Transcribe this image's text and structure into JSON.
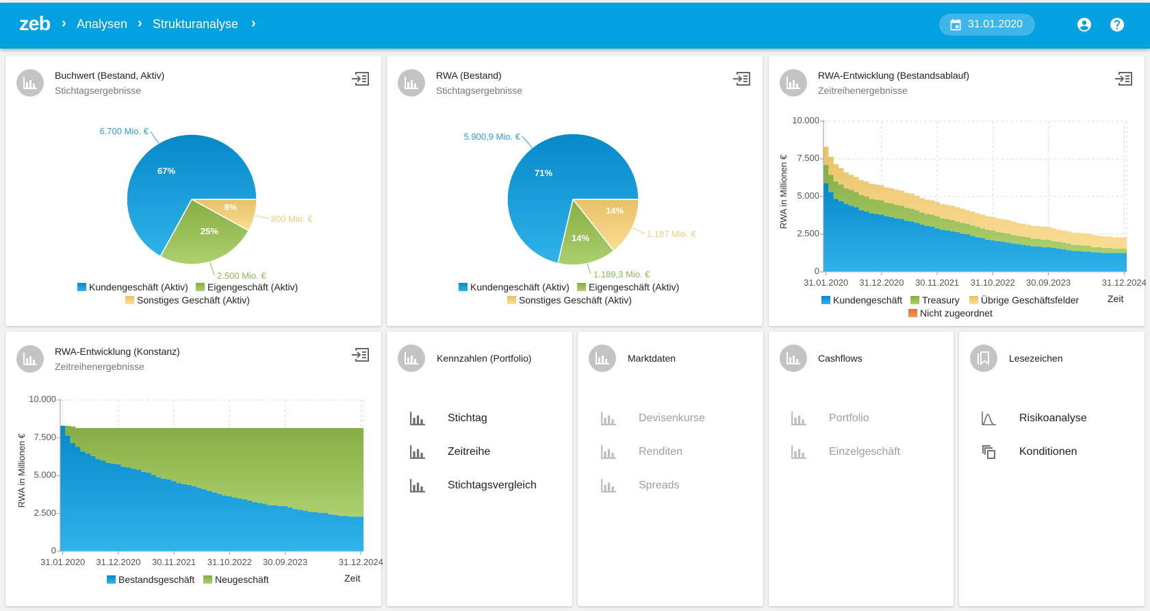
{
  "header": {
    "logo": "zeb",
    "breadcrumb": [
      "Analysen",
      "Strukturanalyse"
    ],
    "date": "31.01.2020",
    "icons": [
      "calendar-icon",
      "account-icon",
      "help-icon"
    ]
  },
  "colors": {
    "brand": "#03a0e2",
    "blue": "#129fdc",
    "green": "#97bf56",
    "yellow": "#f2d081",
    "orange": "#e8823c"
  },
  "cards": {
    "buchwert": {
      "title": "Buchwert (Bestand, Aktiv)",
      "subtitle": "Stichtagsergebnisse"
    },
    "rwa": {
      "title": "RWA (Bestand)",
      "subtitle": "Stichtagsergebnisse"
    },
    "rwa_entw": {
      "title": "RWA-Entwicklung (Bestandsablauf)",
      "subtitle": "Zeitreihenergebnisse"
    },
    "rwa_konst": {
      "title": "RWA-Entwicklung (Konstanz)",
      "subtitle": "Zeitreihenergebnisse"
    },
    "kennzahlen": {
      "title": "Kennzahlen (Portfolio)",
      "items": [
        {
          "label": "Stichtag",
          "icon": "bar-chart-icon",
          "enabled": true
        },
        {
          "label": "Zeitreihe",
          "icon": "bar-chart-icon",
          "enabled": true
        },
        {
          "label": "Stichtagsvergleich",
          "icon": "bar-chart-icon",
          "enabled": true
        }
      ]
    },
    "marktdaten": {
      "title": "Marktdaten",
      "items": [
        {
          "label": "Devisenkurse",
          "icon": "bar-chart-icon",
          "enabled": false
        },
        {
          "label": "Renditen",
          "icon": "bar-chart-icon",
          "enabled": false
        },
        {
          "label": "Spreads",
          "icon": "bar-chart-icon",
          "enabled": false
        }
      ]
    },
    "cashflows": {
      "title": "Cashflows",
      "items": [
        {
          "label": "Portfolio",
          "icon": "bar-chart-icon",
          "enabled": false
        },
        {
          "label": "Einzelgeschäft",
          "icon": "bar-chart-icon",
          "enabled": false
        }
      ]
    },
    "lesezeichen": {
      "title": "Lesezeichen",
      "items": [
        {
          "label": "Risikoanalyse",
          "icon": "bell-curve-icon",
          "enabled": true
        },
        {
          "label": "Konditionen",
          "icon": "copy-icon",
          "enabled": true
        }
      ]
    }
  },
  "chart_data": [
    {
      "type": "pie",
      "categories": [
        "Kundengeschäft (Aktiv)",
        "Eigengeschäft (Aktiv)",
        "Sonstiges Geschäft (Aktiv)"
      ],
      "values": [
        6700,
        2500,
        800
      ],
      "value_labels": [
        "6.700 Mio. €",
        "2.500 Mio. €",
        "800 Mio. €"
      ],
      "percent_labels": [
        "67%",
        "25%",
        "8%"
      ],
      "legend": "bottom"
    },
    {
      "type": "pie",
      "categories": [
        "Kundengeschäft (Aktiv)",
        "Eigengeschäft (Aktiv)",
        "Sonstiges Geschäft (Aktiv)"
      ],
      "values": [
        5900.9,
        1189.3,
        1187
      ],
      "value_labels": [
        "5.900,9 Mio. €",
        "1.189,3 Mio. €",
        "1.187 Mio. €"
      ],
      "percent_labels": [
        "71%",
        "14%",
        "14%"
      ],
      "legend": "bottom"
    },
    {
      "type": "area",
      "stacked": true,
      "ylabel": "RWA in Millionen €",
      "xlabel": "Zeit",
      "x_start": "31.01.2020",
      "x_end": "31.12.2024",
      "x_step": "month",
      "x_ticks": [
        "31.01.2020",
        "31.12.2020",
        "30.11.2021",
        "31.10.2022",
        "30.09.2023",
        "31.12.2024"
      ],
      "y_ticks": [
        "0",
        "2.500",
        "5.000",
        "7.500",
        "10.000"
      ],
      "ylim": [
        0,
        10000
      ],
      "grid": true,
      "legend": "bottom",
      "series": [
        {
          "name": "Kundengeschäft",
          "values": [
            5900,
            5300,
            4850,
            4700,
            4500,
            4400,
            4300,
            4100,
            4000,
            3900,
            3850,
            3800,
            3700,
            3650,
            3550,
            3500,
            3400,
            3350,
            3250,
            3150,
            3050,
            3000,
            2900,
            2800,
            2750,
            2700,
            2650,
            2550,
            2500,
            2400,
            2300,
            2250,
            2150,
            2100,
            2050,
            2000,
            1950,
            1900,
            1850,
            1800,
            1750,
            1700,
            1700,
            1650,
            1650,
            1600,
            1550,
            1500,
            1450,
            1400,
            1400,
            1350,
            1350,
            1300,
            1300,
            1250,
            1250,
            1250,
            1250,
            1250
          ]
        },
        {
          "name": "Treasury",
          "values": [
            1200,
            1150,
            1150,
            1100,
            1050,
            1050,
            1000,
            1000,
            1000,
            950,
            950,
            950,
            900,
            900,
            900,
            900,
            850,
            850,
            850,
            800,
            800,
            800,
            800,
            750,
            750,
            750,
            700,
            700,
            700,
            700,
            700,
            650,
            650,
            650,
            600,
            600,
            600,
            550,
            550,
            550,
            550,
            500,
            500,
            500,
            500,
            450,
            450,
            450,
            450,
            400,
            400,
            400,
            400,
            350,
            350,
            350,
            350,
            300,
            300,
            300
          ]
        },
        {
          "name": "Übrige Geschäftsfelder",
          "values": [
            1200,
            1200,
            1150,
            1100,
            1050,
            1000,
            1000,
            1000,
            1000,
            1000,
            1000,
            1000,
            1000,
            1000,
            1000,
            1000,
            1000,
            1000,
            950,
            950,
            950,
            950,
            950,
            950,
            950,
            950,
            950,
            950,
            900,
            900,
            900,
            900,
            900,
            900,
            900,
            900,
            900,
            900,
            850,
            850,
            850,
            850,
            850,
            850,
            850,
            850,
            800,
            800,
            800,
            800,
            800,
            800,
            800,
            800,
            750,
            750,
            750,
            750,
            750,
            750
          ]
        },
        {
          "name": "Nicht zugeordnet",
          "values": [
            0,
            0,
            0,
            0,
            0,
            0,
            0,
            0,
            0,
            0,
            0,
            0,
            0,
            0,
            0,
            0,
            0,
            0,
            0,
            0,
            0,
            0,
            0,
            0,
            0,
            0,
            0,
            0,
            0,
            0,
            0,
            0,
            0,
            0,
            0,
            0,
            0,
            0,
            0,
            0,
            0,
            0,
            0,
            0,
            0,
            0,
            0,
            0,
            0,
            0,
            0,
            0,
            0,
            0,
            0,
            0,
            0,
            0,
            0,
            0
          ]
        }
      ]
    },
    {
      "type": "area",
      "stacked": true,
      "ylabel": "RWA in Millionen €",
      "xlabel": "Zeit",
      "x_start": "31.01.2020",
      "x_end": "31.12.2024",
      "x_step": "month",
      "x_ticks": [
        "31.01.2020",
        "31.12.2020",
        "30.11.2021",
        "31.10.2022",
        "30.09.2023",
        "31.12.2024"
      ],
      "y_ticks": [
        "0",
        "2.500",
        "5.000",
        "7.500",
        "10.000"
      ],
      "ylim": [
        0,
        10000
      ],
      "grid": true,
      "legend": "bottom",
      "series": [
        {
          "name": "Bestandsgeschäft",
          "values": [
            8300,
            7650,
            7150,
            6900,
            6600,
            6450,
            6300,
            6100,
            6000,
            5850,
            5800,
            5750,
            5600,
            5550,
            5450,
            5400,
            5250,
            5200,
            5050,
            4900,
            4800,
            4750,
            4650,
            4500,
            4450,
            4400,
            4300,
            4200,
            4100,
            4000,
            3900,
            3800,
            3700,
            3650,
            3550,
            3500,
            3450,
            3350,
            3250,
            3200,
            3150,
            3050,
            3050,
            3000,
            3000,
            2900,
            2800,
            2750,
            2700,
            2600,
            2600,
            2550,
            2550,
            2450,
            2400,
            2350,
            2350,
            2300,
            2300,
            2300
          ]
        },
        {
          "name": "Neugeschäft",
          "values": [
            0,
            650,
            1100,
            1250,
            1550,
            1700,
            1850,
            2050,
            2150,
            2300,
            2350,
            2400,
            2550,
            2600,
            2700,
            2750,
            2900,
            2950,
            3100,
            3250,
            3350,
            3400,
            3500,
            3650,
            3700,
            3750,
            3850,
            3950,
            4050,
            4150,
            4250,
            4350,
            4450,
            4500,
            4600,
            4650,
            4700,
            4800,
            4900,
            4950,
            5000,
            5100,
            5100,
            5150,
            5150,
            5250,
            5350,
            5400,
            5450,
            5550,
            5550,
            5600,
            5600,
            5700,
            5750,
            5800,
            5800,
            5850,
            5850,
            5850
          ]
        }
      ]
    }
  ]
}
